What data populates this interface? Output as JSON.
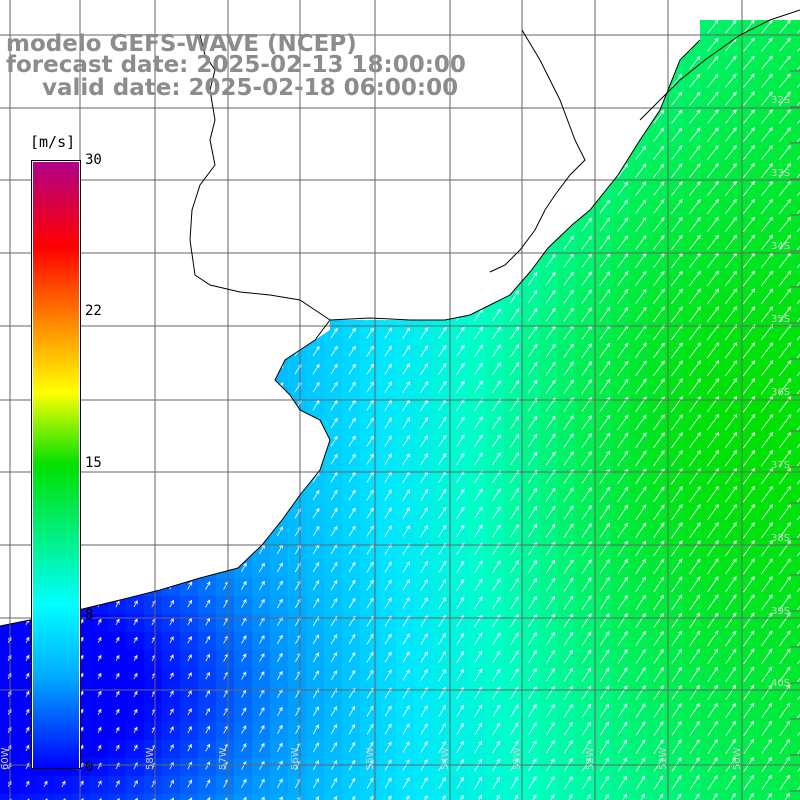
{
  "header": {
    "model": "modelo GEFS-WAVE (NCEP)",
    "forecast": "forecast date: 2025-02-13 18:00:00",
    "valid": "valid date: 2025-02-18 06:00:00"
  },
  "colorbar": {
    "unit": "[m/s]",
    "ticks": [
      "30",
      "22",
      "15",
      "8",
      "0"
    ],
    "colors": [
      "#0000ff",
      "#00aaff",
      "#00ffff",
      "#00e000",
      "#ffff00",
      "#ff7800",
      "#ff0000",
      "#b0008c"
    ]
  },
  "lat_labels": [
    "32S",
    "33S",
    "34S",
    "35S",
    "36S",
    "37S",
    "38S",
    "39S",
    "40S"
  ],
  "lon_labels": [
    "60W",
    "59W",
    "58W",
    "57W",
    "56W",
    "55W",
    "54W",
    "53W",
    "52W",
    "51W",
    "50W"
  ],
  "colors": {
    "land": "#ffffff",
    "grid": "#666666",
    "coast": "#000000",
    "arrow": "#ffffff"
  }
}
